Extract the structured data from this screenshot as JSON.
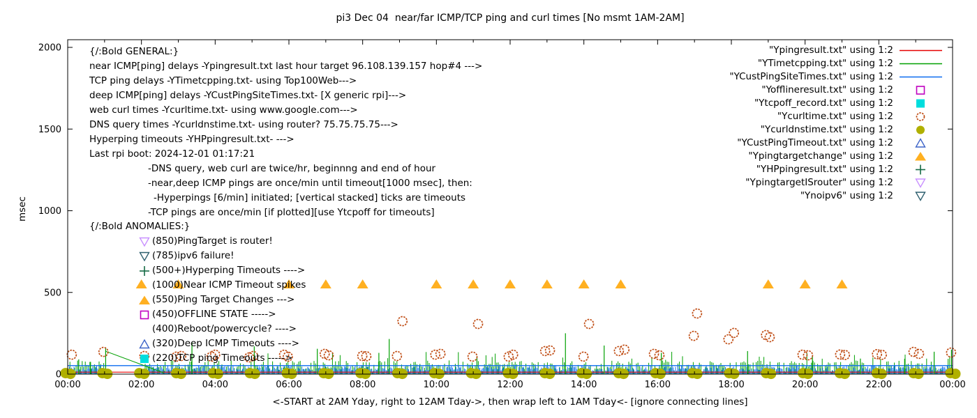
{
  "title": "pi3 Dec 04  near/far ICMP/TCP ping and curl times [No msmt 1AM-2AM]",
  "axes": {
    "ylabel": "msec",
    "xlabel": "<-START at 2AM Yday, right to 12AM Tday->, then wrap left to 1AM Tday<- [ignore connecting lines]",
    "yticks": [
      0,
      500,
      1000,
      1500,
      2000
    ],
    "xtick_labels": [
      "00:00",
      "02:00",
      "04:00",
      "06:00",
      "08:00",
      "10:00",
      "12:00",
      "14:00",
      "16:00",
      "18:00",
      "20:00",
      "22:00",
      "00:00"
    ],
    "xtick_hours": [
      0,
      2,
      4,
      6,
      8,
      10,
      12,
      14,
      16,
      18,
      20,
      22,
      24
    ],
    "minor_xtick_every_hours": 1,
    "ylim": [
      0,
      2000
    ],
    "xlim_hours": [
      0,
      24
    ]
  },
  "annotations": {
    "general": [
      {
        "x": 128,
        "text": "{/:Bold GENERAL:}"
      },
      {
        "x": 128,
        "text": "near ICMP[ping] delays -Ypingresult.txt last hour target 96.108.139.157 hop#4 --->"
      },
      {
        "x": 128,
        "text": "TCP ping delays -YTimetcpping.txt- using Top100Web--->"
      },
      {
        "x": 128,
        "text": "deep ICMP[ping] delays -YCustPingSiteTimes.txt- [X generic rpi]--->"
      },
      {
        "x": 128,
        "text": "web curl times -Ycurltime.txt- using www.google.com--->"
      },
      {
        "x": 128,
        "text": "DNS query times -Ycurldnstime.txt- using router? 75.75.75.75--->"
      },
      {
        "x": 128,
        "text": "Hyperping timeouts -YHPpingresult.txt- --->"
      },
      {
        "x": 128,
        "text": "Last rpi boot: 2024-12-01 01:17:21"
      },
      {
        "x": 212,
        "text": "-DNS query, web curl are twice/hr, beginnng and end of hour"
      },
      {
        "x": 212,
        "text": "-near,deep ICMP pings are once/min until timeout[1000 msec], then:"
      },
      {
        "x": 220,
        "text": "-Hyperpings [6/min] initiated; [vertical stacked] ticks are timeouts"
      },
      {
        "x": 212,
        "text": "-TCP pings are once/min [if plotted][use Ytcpoff for timeouts]"
      }
    ],
    "anomalies_title": {
      "x": 128,
      "text": "{/:Bold ANOMALIES:}"
    },
    "anomalies": [
      {
        "marker": "triangle-down-open",
        "color": "#c88fff",
        "text": "(850)PingTarget is router!"
      },
      {
        "marker": "triangle-down-open",
        "color": "#2d5f6e",
        "text": "(785)ipv6 failure!"
      },
      {
        "marker": "plus",
        "color": "#156b45",
        "text": "(500+)Hyperping Timeouts ---->"
      },
      {
        "marker": null,
        "color": null,
        "text": "(1000)Near ICMP Timeout spikes"
      },
      {
        "marker": "triangle-filled",
        "color": "#ffb021",
        "text": "(550)Ping Target Changes --->"
      },
      {
        "marker": "square-open",
        "color": "#c000c0",
        "text": "(450)OFFLINE STATE ----->"
      },
      {
        "marker": null,
        "color": null,
        "text": "(400)Reboot/powercycle? ---->"
      },
      {
        "marker": "triangle-open",
        "color": "#3c63c8",
        "text": "(320)Deep ICMP Timeouts ---->"
      },
      {
        "marker": "square-filled",
        "color": "#00dddd",
        "text": "(220)TCP ping Timeouts ----->"
      }
    ]
  },
  "legend": [
    {
      "label": "\"Ypingresult.txt\" using 1:2",
      "marker": "hline",
      "color": "#e60000"
    },
    {
      "label": "\"YTimetcpping.txt\" using 1:2",
      "marker": "hline",
      "color": "#00a000"
    },
    {
      "label": "\"YCustPingSiteTimes.txt\" using 1:2",
      "marker": "hline",
      "color": "#0b6bf0"
    },
    {
      "label": "\"Yofflineresult.txt\" using 1:2",
      "marker": "square-open",
      "color": "#c000c0"
    },
    {
      "label": "\"Ytcpoff_record.txt\" using 1:2",
      "marker": "square-filled",
      "color": "#00dddd"
    },
    {
      "label": "\"Ycurltime.txt\" using 1:2",
      "marker": "circle-open",
      "color": "#bf4b12"
    },
    {
      "label": "\"Ycurldnstime.txt\" using 1:2",
      "marker": "circle-filled",
      "color": "#b0b000"
    },
    {
      "label": "\"YCustPingTimeout.txt\" using 1:2",
      "marker": "triangle-open",
      "color": "#3c63c8"
    },
    {
      "label": "\"Ypingtargetchange\" using 1:2",
      "marker": "triangle-filled",
      "color": "#ffb021"
    },
    {
      "label": "\"YHPpingresult.txt\" using 1:2",
      "marker": "plus",
      "color": "#156b45"
    },
    {
      "label": "\"YpingtargetISrouter\" using 1:2",
      "marker": "triangle-down-open",
      "color": "#c88fff"
    },
    {
      "label": "\"Ynoipv6\" using 1:2",
      "marker": "triangle-down-open",
      "color": "#2d5f6e"
    }
  ],
  "chart_data": {
    "type": "line",
    "title": "pi3 Dec 04  near/far ICMP/TCP ping and curl times [No msmt 1AM-2AM]",
    "xlabel": "<-START at 2AM Yday, right to 12AM Tday->, then wrap left to 1AM Tday<- [ignore connecting lines]",
    "ylabel": "msec",
    "ylim": [
      0,
      2000
    ],
    "xlim_hours": [
      0,
      24
    ],
    "no_measurement_gap_hours": [
      1.0,
      2.08
    ],
    "series": [
      {
        "name": "Ypingresult.txt",
        "style": "baseline",
        "color": "#e60000",
        "value_msec": 12
      },
      {
        "name": "YTimetcpping.txt",
        "style": "noise-band",
        "color": "#00a000",
        "band_msec": [
          0,
          85
        ],
        "spikes": [
          [
            0.3,
            90
          ],
          [
            0.62,
            75
          ],
          [
            1.03,
            160
          ],
          [
            3.37,
            195
          ],
          [
            5.06,
            170
          ],
          [
            6.77,
            155
          ],
          [
            8.44,
            130
          ],
          [
            8.72,
            215
          ],
          [
            11.1,
            110
          ],
          [
            13.5,
            250
          ],
          [
            14.55,
            175
          ],
          [
            16.1,
            130
          ],
          [
            18.44,
            141
          ],
          [
            20.2,
            115
          ],
          [
            21.5,
            95
          ],
          [
            22.7,
            94
          ],
          [
            23.5,
            137
          ],
          [
            23.97,
            150
          ]
        ],
        "connecting_line": [
          [
            1.03,
            140
          ],
          [
            2.6,
            8
          ]
        ]
      },
      {
        "name": "YCustPingSiteTimes.txt",
        "style": "noise-band",
        "color": "#0b6bf0",
        "band_msec": [
          0,
          52
        ],
        "topline_msec": 52
      },
      {
        "name": "Yofflineresult.txt",
        "style": "points",
        "marker": "square-open",
        "color": "#c000c0",
        "points": []
      },
      {
        "name": "Ytcpoff_record.txt",
        "style": "points",
        "marker": "square-filled",
        "color": "#00dddd",
        "points": []
      },
      {
        "name": "Ycurltime.txt",
        "style": "points",
        "marker": "circle-open",
        "color": "#bf4b12",
        "points": [
          [
            0.11,
            119
          ],
          [
            0.97,
            136
          ],
          [
            2.08,
            111
          ],
          [
            2.95,
            107
          ],
          [
            3.08,
            111
          ],
          [
            3.9,
            107
          ],
          [
            4.0,
            119
          ],
          [
            4.92,
            102
          ],
          [
            5.03,
            111
          ],
          [
            5.87,
            119
          ],
          [
            5.97,
            107
          ],
          [
            6.97,
            124
          ],
          [
            7.08,
            115
          ],
          [
            7.99,
            111
          ],
          [
            8.1,
            109
          ],
          [
            8.93,
            111
          ],
          [
            9.08,
            324
          ],
          [
            9.97,
            119
          ],
          [
            10.11,
            124
          ],
          [
            10.98,
            107
          ],
          [
            11.13,
            307
          ],
          [
            11.96,
            107
          ],
          [
            12.08,
            119
          ],
          [
            12.95,
            141
          ],
          [
            13.08,
            145
          ],
          [
            13.99,
            107
          ],
          [
            14.14,
            307
          ],
          [
            14.95,
            141
          ],
          [
            15.1,
            150
          ],
          [
            15.9,
            124
          ],
          [
            16.05,
            115
          ],
          [
            16.98,
            234
          ],
          [
            17.07,
            371
          ],
          [
            17.92,
            213
          ],
          [
            18.07,
            252
          ],
          [
            18.94,
            239
          ],
          [
            19.04,
            226
          ],
          [
            19.93,
            119
          ],
          [
            20.08,
            115
          ],
          [
            20.95,
            120
          ],
          [
            21.08,
            117
          ],
          [
            21.95,
            122
          ],
          [
            22.08,
            118
          ],
          [
            22.94,
            136
          ],
          [
            23.09,
            124
          ],
          [
            23.96,
            132
          ]
        ]
      },
      {
        "name": "Ycurldnstime.txt",
        "style": "points",
        "marker": "circle-filled",
        "color": "#b0b000",
        "note": "twice per hour, overlapping near 0 msec",
        "points": [
          [
            0,
            6
          ],
          [
            1,
            6
          ],
          [
            2,
            6
          ],
          [
            3,
            6
          ],
          [
            4,
            6
          ],
          [
            5,
            6
          ],
          [
            6,
            6
          ],
          [
            7,
            6
          ],
          [
            8,
            6
          ],
          [
            9,
            6
          ],
          [
            10,
            6
          ],
          [
            11,
            6
          ],
          [
            12,
            6
          ],
          [
            13,
            6
          ],
          [
            14,
            6
          ],
          [
            15,
            6
          ],
          [
            16,
            6
          ],
          [
            17,
            6
          ],
          [
            18,
            6
          ],
          [
            19,
            6
          ],
          [
            20,
            6
          ],
          [
            21,
            6
          ],
          [
            22,
            6
          ],
          [
            23,
            6
          ],
          [
            24,
            6
          ]
        ]
      },
      {
        "name": "YCustPingTimeout.txt",
        "style": "points",
        "marker": "triangle-open",
        "color": "#3c63c8",
        "points": []
      },
      {
        "name": "Ypingtargetchange",
        "style": "points",
        "marker": "triangle-filled",
        "color": "#ffb021",
        "points": [
          [
            2,
            550
          ],
          [
            3,
            550
          ],
          [
            6,
            550
          ],
          [
            7,
            550
          ],
          [
            8,
            550
          ],
          [
            10,
            550
          ],
          [
            11,
            550
          ],
          [
            12,
            550
          ],
          [
            13,
            550
          ],
          [
            14,
            550
          ],
          [
            15,
            550
          ],
          [
            19,
            550
          ],
          [
            20,
            550
          ],
          [
            21,
            550
          ]
        ]
      },
      {
        "name": "YHPpingresult.txt",
        "style": "points",
        "marker": "plus",
        "color": "#156b45",
        "points": []
      },
      {
        "name": "YpingtargetISrouter",
        "style": "points",
        "marker": "triangle-down-open",
        "color": "#c88fff",
        "points": []
      },
      {
        "name": "Ynoipv6",
        "style": "points",
        "marker": "triangle-down-open",
        "color": "#2d5f6e",
        "points": []
      }
    ]
  }
}
